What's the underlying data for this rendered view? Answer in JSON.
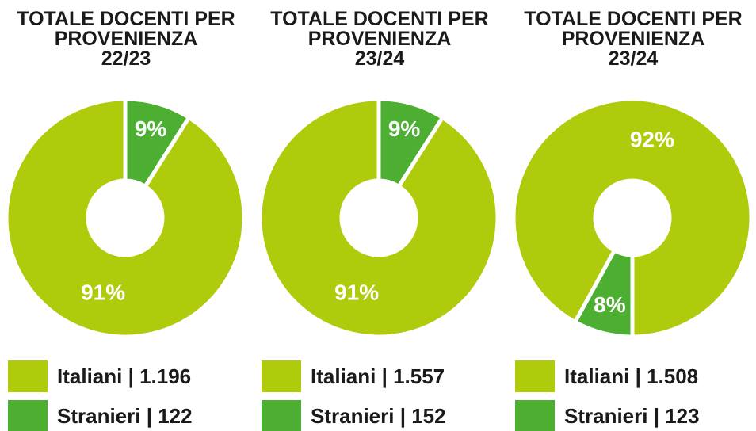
{
  "chart_data": [
    {
      "type": "pie",
      "title": "TOTALE DOCENTI PER PROVENIENZA",
      "subtitle": "22/23",
      "categories": [
        "Italiani | 1.196",
        "Stranieri | 122"
      ],
      "values": [
        91,
        9
      ],
      "value_labels": [
        "91%",
        "9%"
      ],
      "colors": [
        "#b0cb0c",
        "#4caf32"
      ],
      "startangle": 0,
      "counterclock": true,
      "donut": true
    },
    {
      "type": "pie",
      "title": "TOTALE DOCENTI PER PROVENIENZA",
      "subtitle": "23/24",
      "categories": [
        "Italiani | 1.557",
        "Stranieri | 152"
      ],
      "values": [
        91,
        9
      ],
      "value_labels": [
        "91%",
        "9%"
      ],
      "colors": [
        "#b0cb0c",
        "#4caf32"
      ],
      "startangle": 0,
      "counterclock": true,
      "donut": true
    },
    {
      "type": "pie",
      "title": "TOTALE DOCENTI PER PROVENIENZA",
      "subtitle": "23/24",
      "categories": [
        "Italiani | 1.508",
        "Stranieri | 123"
      ],
      "values": [
        92,
        8
      ],
      "value_labels": [
        "92%",
        "8%"
      ],
      "colors": [
        "#b0cb0c",
        "#4caf32"
      ],
      "startangle": 180,
      "counterclock": true,
      "donut": true
    }
  ]
}
